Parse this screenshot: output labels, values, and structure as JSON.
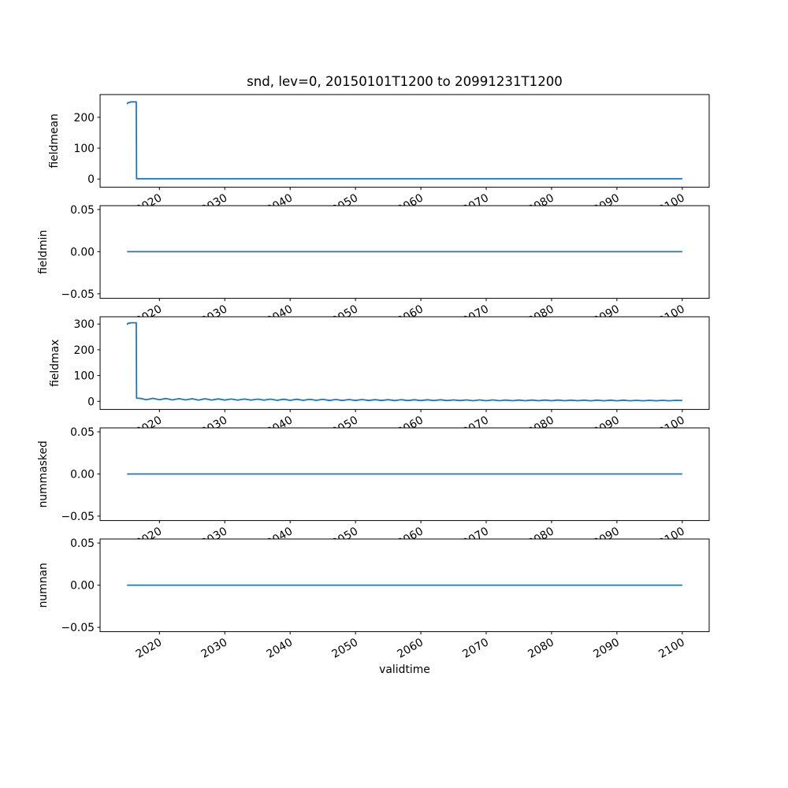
{
  "chart_data": {
    "type": "line",
    "title": "snd, lev=0, 20150101T1200 to 20991231T1200",
    "xlabel": "validtime",
    "line_color": "#1f77b4",
    "legend": "none",
    "grid": false,
    "x_ticks": [
      2020,
      2030,
      2040,
      2050,
      2060,
      2070,
      2080,
      2090,
      2100
    ],
    "x_tick_labels": [
      "2020",
      "2030",
      "2040",
      "2050",
      "2060",
      "2070",
      "2080",
      "2090",
      "2100"
    ],
    "x_range": [
      2015.0,
      2100.0
    ],
    "subplots": [
      {
        "ylabel": "fieldmean",
        "ylim": [
          -30,
          272
        ],
        "y_ticks": [
          0,
          100,
          200
        ],
        "y_tick_labels": [
          "0",
          "100",
          "200"
        ],
        "points": [
          [
            2015.04,
            243
          ],
          [
            2015.2,
            248
          ],
          [
            2015.45,
            248
          ],
          [
            2015.6,
            250
          ],
          [
            2016.45,
            250
          ],
          [
            2016.5,
            1
          ],
          [
            2100,
            1
          ]
        ]
      },
      {
        "ylabel": "fieldmin",
        "ylim": [
          -0.055,
          0.055
        ],
        "y_ticks": [
          0.05,
          0.0,
          -0.05
        ],
        "y_tick_labels": [
          "0.05",
          "0.00",
          "−0.05"
        ],
        "points": [
          [
            2015.04,
            0
          ],
          [
            2100,
            0
          ]
        ]
      },
      {
        "ylabel": "fieldmax",
        "ylim": [
          -29,
          331
        ],
        "y_ticks": [
          0,
          100,
          200,
          300
        ],
        "y_tick_labels": [
          "0",
          "100",
          "200",
          "300"
        ],
        "points": [
          [
            2015.04,
            298
          ],
          [
            2015.2,
            303
          ],
          [
            2015.45,
            303
          ],
          [
            2015.6,
            305
          ],
          [
            2016.45,
            305
          ],
          [
            2016.5,
            12
          ],
          [
            2017,
            12
          ],
          [
            2018,
            6
          ],
          [
            2019,
            11.5
          ],
          [
            2020,
            6
          ],
          [
            2021,
            11
          ],
          [
            2022,
            5.5
          ],
          [
            2023,
            10.5
          ],
          [
            2024,
            5.5
          ],
          [
            2025,
            10
          ],
          [
            2026,
            5
          ],
          [
            2027,
            10
          ],
          [
            2028,
            5
          ],
          [
            2029,
            9.5
          ],
          [
            2030,
            5
          ],
          [
            2031,
            9
          ],
          [
            2032,
            4.5
          ],
          [
            2033,
            9
          ],
          [
            2034,
            4.5
          ],
          [
            2035,
            8.5
          ],
          [
            2036,
            4.5
          ],
          [
            2037,
            8.5
          ],
          [
            2038,
            4
          ],
          [
            2039,
            8
          ],
          [
            2040,
            4
          ],
          [
            2041,
            8
          ],
          [
            2042,
            4
          ],
          [
            2043,
            7.5
          ],
          [
            2044,
            4
          ],
          [
            2045,
            7.5
          ],
          [
            2046,
            3.5
          ],
          [
            2047,
            7
          ],
          [
            2048,
            3.5
          ],
          [
            2049,
            7
          ],
          [
            2050,
            3.5
          ],
          [
            2051,
            7
          ],
          [
            2052,
            3.5
          ],
          [
            2053,
            6.5
          ],
          [
            2054,
            3.5
          ],
          [
            2055,
            6.5
          ],
          [
            2056,
            3
          ],
          [
            2057,
            6.5
          ],
          [
            2058,
            3
          ],
          [
            2059,
            6
          ],
          [
            2060,
            3
          ],
          [
            2061,
            6
          ],
          [
            2062,
            3
          ],
          [
            2063,
            6
          ],
          [
            2064,
            3
          ],
          [
            2065,
            5.5
          ],
          [
            2066,
            3
          ],
          [
            2067,
            5.5
          ],
          [
            2068,
            2.5
          ],
          [
            2069,
            5.5
          ],
          [
            2070,
            2.5
          ],
          [
            2071,
            5.5
          ],
          [
            2072,
            2.5
          ],
          [
            2073,
            5
          ],
          [
            2074,
            2.5
          ],
          [
            2075,
            5
          ],
          [
            2076,
            2.5
          ],
          [
            2077,
            5
          ],
          [
            2078,
            2.5
          ],
          [
            2079,
            5
          ],
          [
            2080,
            2.5
          ],
          [
            2081,
            5
          ],
          [
            2082,
            2.5
          ],
          [
            2083,
            4.5
          ],
          [
            2084,
            2.5
          ],
          [
            2085,
            4.5
          ],
          [
            2086,
            2
          ],
          [
            2087,
            4.5
          ],
          [
            2088,
            2
          ],
          [
            2089,
            4.5
          ],
          [
            2090,
            2
          ],
          [
            2091,
            4.5
          ],
          [
            2092,
            2
          ],
          [
            2093,
            4
          ],
          [
            2094,
            2
          ],
          [
            2095,
            4
          ],
          [
            2096,
            2
          ],
          [
            2097,
            4
          ],
          [
            2098,
            2
          ],
          [
            2099,
            4
          ],
          [
            2100,
            3
          ]
        ]
      },
      {
        "ylabel": "nummasked",
        "ylim": [
          -0.055,
          0.055
        ],
        "y_ticks": [
          0.05,
          0.0,
          -0.05
        ],
        "y_tick_labels": [
          "0.05",
          "0.00",
          "−0.05"
        ],
        "points": [
          [
            2015.04,
            0
          ],
          [
            2100,
            0
          ]
        ]
      },
      {
        "ylabel": "numnan",
        "ylim": [
          -0.055,
          0.055
        ],
        "y_ticks": [
          0.05,
          0.0,
          -0.05
        ],
        "y_tick_labels": [
          "0.05",
          "0.00",
          "−0.05"
        ],
        "points": [
          [
            2015.04,
            0
          ],
          [
            2100,
            0
          ]
        ]
      }
    ]
  }
}
